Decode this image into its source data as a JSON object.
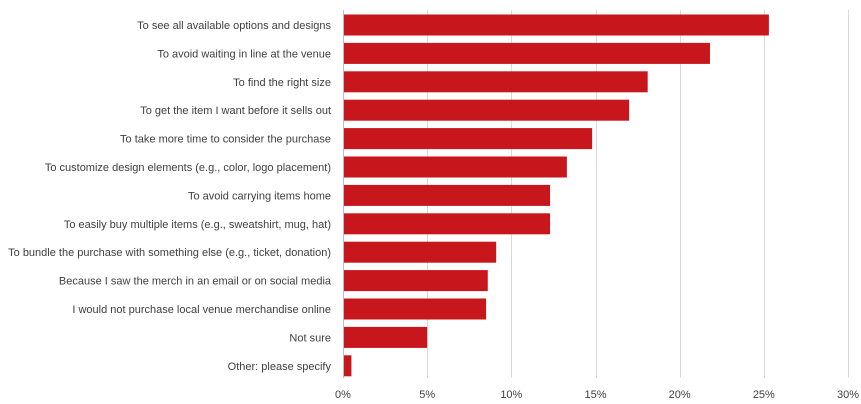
{
  "chart_data": {
    "type": "bar",
    "orientation": "horizontal",
    "bar_color": "#c8161d",
    "grid_color": "#d9d9d9",
    "text_color": "#404040",
    "grid": true,
    "xlim": [
      0,
      30
    ],
    "x_ticks": [
      "0%",
      "5%",
      "10%",
      "15%",
      "20%",
      "25%",
      "30%"
    ],
    "categories": [
      "To see all available options and designs",
      "To avoid waiting in line at the venue",
      "To find the right size",
      "To get the item I want before it sells out",
      "To take more time to consider the purchase",
      "To customize design elements (e.g., color, logo placement)",
      "To avoid carrying items home",
      "To easily buy multiple items (e.g., sweatshirt, mug, hat)",
      "To bundle the purchase with something else (e.g., ticket, donation)",
      "Because I saw the merch in an email or on social media",
      "I would not purchase local venue merchandise online",
      "Not sure",
      "Other: please specify"
    ],
    "values": [
      25.3,
      21.8,
      18.1,
      17.0,
      14.8,
      13.3,
      12.3,
      12.3,
      9.1,
      8.6,
      8.5,
      5.0,
      0.5
    ]
  }
}
